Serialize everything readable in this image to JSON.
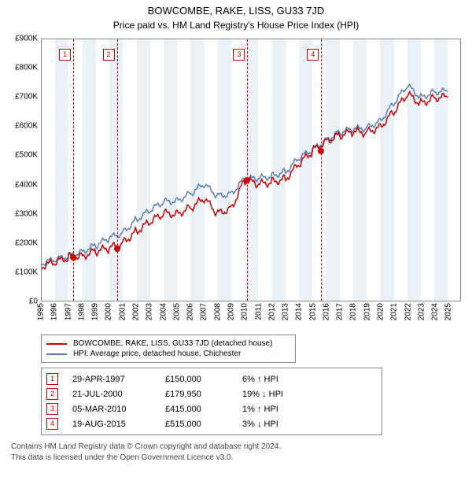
{
  "title_main": "BOWCOMBE, RAKE, LISS, GU33 7JD",
  "title_sub": "Price paid vs. HM Land Registry's House Price Index (HPI)",
  "title_main_fontsize": 13,
  "title_sub_fontsize": 12,
  "colors": {
    "series_property": "#cc0000",
    "series_hpi": "#5b7fb4",
    "grid_band": "#eaf1f7",
    "border": "#888888",
    "marker1": "#cc0000",
    "marker2": "#cc0000",
    "marker3": "#cc0000",
    "marker4": "#cc0000",
    "sale_dot": "#cc0000",
    "background": "#ffffff"
  },
  "chart": {
    "type": "line",
    "xlim_year": [
      1995,
      2025.9
    ],
    "ylim": [
      0,
      900000
    ],
    "ytick_step": 100000,
    "y_tick_labels": [
      "£0",
      "£100K",
      "£200K",
      "£300K",
      "£400K",
      "£500K",
      "£600K",
      "£700K",
      "£800K",
      "£900K"
    ],
    "x_tick_labels": [
      "1995",
      "1996",
      "1997",
      "1998",
      "1999",
      "2000",
      "2001",
      "2002",
      "2003",
      "2004",
      "2005",
      "2006",
      "2007",
      "2008",
      "2009",
      "2010",
      "2011",
      "2012",
      "2013",
      "2014",
      "2015",
      "2016",
      "2017",
      "2018",
      "2019",
      "2020",
      "2021",
      "2022",
      "2023",
      "2024",
      "2025"
    ],
    "line_width": 1.5,
    "series_property": {
      "label": "BOWCOMBE, RAKE, LISS, GU33 7JD (detached house)",
      "years": [
        1995,
        1996,
        1997,
        1998,
        1999,
        2000,
        2001,
        2002,
        2003,
        2004,
        2005,
        2006,
        2007,
        2008,
        2009,
        2010,
        2011,
        2012,
        2013,
        2014,
        2015,
        2016,
        2017,
        2018,
        2019,
        2020,
        2021,
        2022,
        2023,
        2024,
        2025
      ],
      "values": [
        120000,
        130000,
        150000,
        155000,
        170000,
        180000,
        200000,
        240000,
        270000,
        300000,
        300000,
        320000,
        350000,
        300000,
        320000,
        415000,
        400000,
        410000,
        420000,
        470000,
        515000,
        550000,
        570000,
        580000,
        580000,
        600000,
        650000,
        710000,
        680000,
        700000,
        700000
      ]
    },
    "series_hpi": {
      "label": "HPI: Average price, detached house, Chichester",
      "years": [
        1995,
        1996,
        1997,
        1998,
        1999,
        2000,
        2001,
        2002,
        2003,
        2004,
        2005,
        2006,
        2007,
        2008,
        2009,
        2010,
        2011,
        2012,
        2013,
        2014,
        2015,
        2016,
        2017,
        2018,
        2019,
        2020,
        2021,
        2022,
        2023,
        2024,
        2025
      ],
      "values": [
        130000,
        140000,
        155000,
        170000,
        190000,
        215000,
        235000,
        280000,
        310000,
        340000,
        345000,
        370000,
        400000,
        360000,
        370000,
        420000,
        420000,
        430000,
        445000,
        490000,
        520000,
        555000,
        580000,
        590000,
        595000,
        620000,
        680000,
        740000,
        700000,
        720000,
        720000
      ]
    }
  },
  "sales": [
    {
      "n": "1",
      "year": 1997.33,
      "date": "29-APR-1997",
      "price_num": 150000,
      "price": "£150,000",
      "pct": "6% ↑ HPI"
    },
    {
      "n": "2",
      "year": 2000.55,
      "date": "21-JUL-2000",
      "price_num": 179950,
      "price": "£179,950",
      "pct": "19% ↓ HPI"
    },
    {
      "n": "3",
      "year": 2010.18,
      "date": "05-MAR-2010",
      "price_num": 415000,
      "price": "£415,000",
      "pct": "1% ↑ HPI"
    },
    {
      "n": "4",
      "year": 2015.63,
      "date": "19-AUG-2015",
      "price_num": 515000,
      "price": "£515,000",
      "pct": "3% ↓ HPI"
    }
  ],
  "footer_line1": "Contains HM Land Registry data © Crown copyright and database right 2024.",
  "footer_line2": "This data is licensed under the Open Government Licence v3.0."
}
